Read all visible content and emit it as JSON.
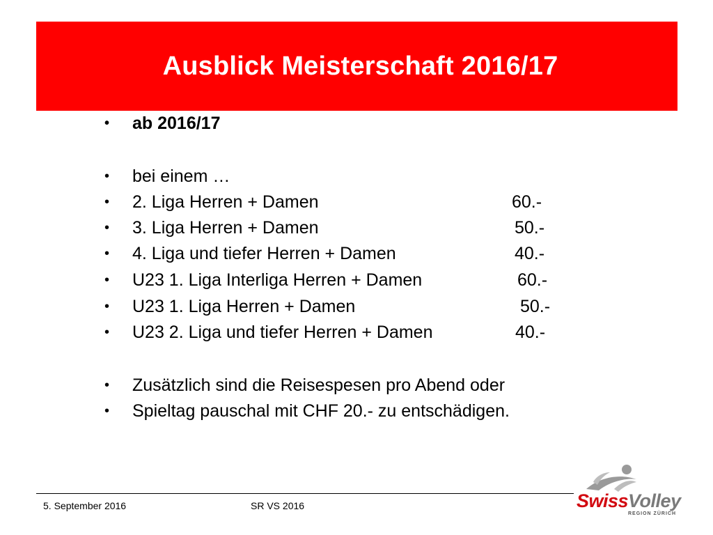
{
  "slide": {
    "title": "Ausblick Meisterschaft 2016/17",
    "bullet_glyph": "•",
    "items": [
      {
        "text": "ab  2016/17",
        "price": ""
      },
      {
        "text": "bei einem …",
        "price": ""
      },
      {
        "text": "2. Liga  Herren + Damen",
        "price": "60.-"
      },
      {
        "text": "3. Liga  Herren + Damen",
        "price": "50.-"
      },
      {
        "text": "4. Liga und tiefer  Herren + Damen",
        "price": "40.-"
      },
      {
        "text": "U23 1. Liga Interliga  Herren + Damen",
        "price": "60.-"
      },
      {
        "text": "U23 1. Liga  Herren + Damen",
        "price": "50.-"
      },
      {
        "text": "U23 2. Liga und tiefer  Herren + Damen",
        "price": "40.-"
      },
      {
        "text": "Zusätzlich sind die Reisespesen pro Abend oder",
        "price": ""
      },
      {
        "text": "Spieltag pauschal mit CHF 20.- zu entschädigen.",
        "price": ""
      }
    ]
  },
  "footer": {
    "date": "5. September 2016",
    "center": "SR VS 2016"
  },
  "logo": {
    "word_part1": "Swiss",
    "word_part2": "Volley",
    "subtitle": "REGION ZÜRICH"
  },
  "colors": {
    "title_bar": "#ff0000",
    "logo_red": "#d20a11",
    "logo_grey": "#7a7a7a"
  }
}
